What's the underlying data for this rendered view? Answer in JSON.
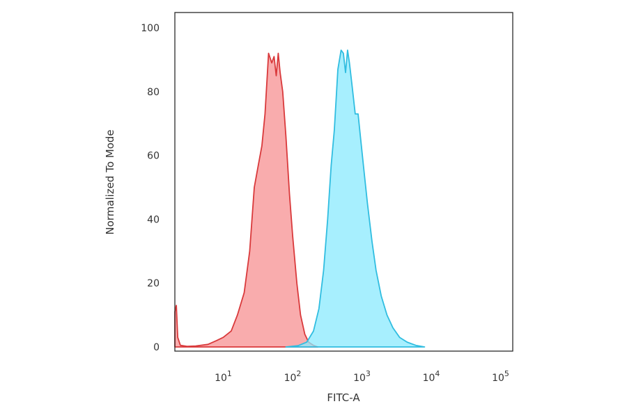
{
  "chart_data": {
    "type": "area",
    "title": "",
    "xlabel": "FITC-A",
    "ylabel": "Normalized To Mode",
    "xscale": "log",
    "xlim": [
      2,
      150000
    ],
    "ylim": [
      0,
      105
    ],
    "grid": false,
    "legend": "none",
    "yticks": [
      {
        "value": 0,
        "label": "0"
      },
      {
        "value": 20,
        "label": "20"
      },
      {
        "value": 40,
        "label": "40"
      },
      {
        "value": 60,
        "label": "60"
      },
      {
        "value": 80,
        "label": "80"
      },
      {
        "value": 100,
        "label": "100"
      }
    ],
    "xticks": [
      {
        "value": 10,
        "base": "10",
        "exp": "1"
      },
      {
        "value": 100,
        "base": "10",
        "exp": "2"
      },
      {
        "value": 1000,
        "base": "10",
        "exp": "3"
      },
      {
        "value": 10000,
        "base": "10",
        "exp": "4"
      },
      {
        "value": 100000,
        "base": "10",
        "exp": "5"
      }
    ],
    "series": [
      {
        "fill": "#f79091",
        "stroke": "#d9393b",
        "x": [
          2,
          2.1,
          2.2,
          2.4,
          3,
          4,
          6,
          8,
          10,
          13,
          16,
          20,
          24,
          28,
          32,
          36,
          40,
          45,
          50,
          54,
          58,
          62,
          66,
          72,
          80,
          90,
          100,
          115,
          130,
          150,
          170,
          200,
          230
        ],
        "y": [
          11,
          13,
          3,
          0.5,
          0.2,
          0.3,
          0.8,
          2,
          3,
          5,
          10,
          17,
          30,
          50,
          57,
          63,
          73,
          92,
          89,
          91,
          85,
          92,
          86,
          80,
          66,
          48,
          35,
          20,
          10,
          4,
          1.5,
          0.5,
          0
        ]
      },
      {
        "fill": "#8ae9fd",
        "stroke": "#30bde0",
        "x": [
          80,
          120,
          160,
          200,
          240,
          280,
          320,
          360,
          400,
          450,
          500,
          540,
          580,
          620,
          660,
          720,
          800,
          880,
          950,
          1050,
          1200,
          1400,
          1600,
          1900,
          2300,
          2800,
          3500,
          4500,
          6000,
          8000
        ],
        "y": [
          0,
          0.4,
          1.5,
          5,
          12,
          24,
          40,
          57,
          68,
          87,
          93,
          92,
          86,
          93,
          89,
          82,
          73,
          73,
          66,
          57,
          45,
          33,
          24,
          16,
          10,
          6,
          3,
          1.5,
          0.5,
          0
        ]
      }
    ]
  }
}
